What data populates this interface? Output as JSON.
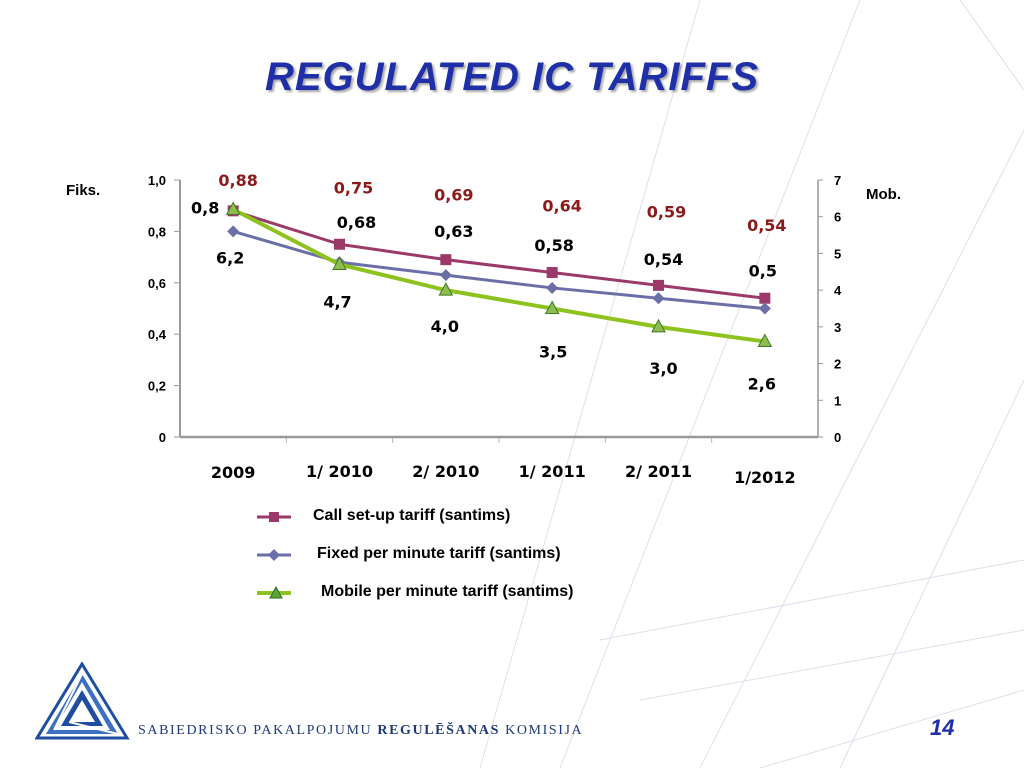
{
  "slide": {
    "title": "REGULATED IC TARIFFS",
    "page_number": "14",
    "footer_org_part1": "SABIEDRISKO PAKALPOJUMU",
    "footer_org_bold": "REGULĒŠANAS",
    "footer_org_part2": "KOMISIJA"
  },
  "chart_data": {
    "type": "line",
    "categories": [
      "2009",
      "1/ 2010",
      "2/ 2010",
      "1/ 2011",
      "2/ 2011",
      "1/2012"
    ],
    "left_axis": {
      "label": "Fiks.",
      "min": 0,
      "max": 1.0,
      "ticks": [
        "0",
        "0,2",
        "0,4",
        "0,6",
        "0,8",
        "1,0"
      ]
    },
    "right_axis": {
      "label": "Mob.",
      "min": 0,
      "max": 7,
      "ticks": [
        "0",
        "1",
        "2",
        "3",
        "4",
        "5",
        "6",
        "7"
      ]
    },
    "series": [
      {
        "name": "Call set-up tariff (santims)",
        "axis": "left",
        "color": "#9b3a6a",
        "marker": "square",
        "values": [
          0.88,
          0.75,
          0.69,
          0.64,
          0.59,
          0.54
        ],
        "labels": [
          "0,88",
          "0,75",
          "0,69",
          "0,64",
          "0,59",
          "0,54"
        ],
        "label_color": "#8b1a1a"
      },
      {
        "name": "Fixed per minute tariff (santims)",
        "axis": "left",
        "color": "#6b6fa8",
        "marker": "diamond",
        "values": [
          0.8,
          0.68,
          0.63,
          0.58,
          0.54,
          0.5
        ],
        "labels": [
          "0,8",
          "0,68",
          "0,63",
          "0,58",
          "0,54",
          "0,5"
        ],
        "label_color": "#000000"
      },
      {
        "name": "Mobile per minute tariff  (santims)",
        "axis": "right",
        "color": "#8dc21f",
        "marker": "triangle",
        "values": [
          6.2,
          4.7,
          4.0,
          3.5,
          3.0,
          2.6
        ],
        "labels": [
          "6,2",
          "4,7",
          "4,0",
          "3,5",
          "3,0",
          "2,6"
        ],
        "label_color": "#000000"
      }
    ]
  }
}
